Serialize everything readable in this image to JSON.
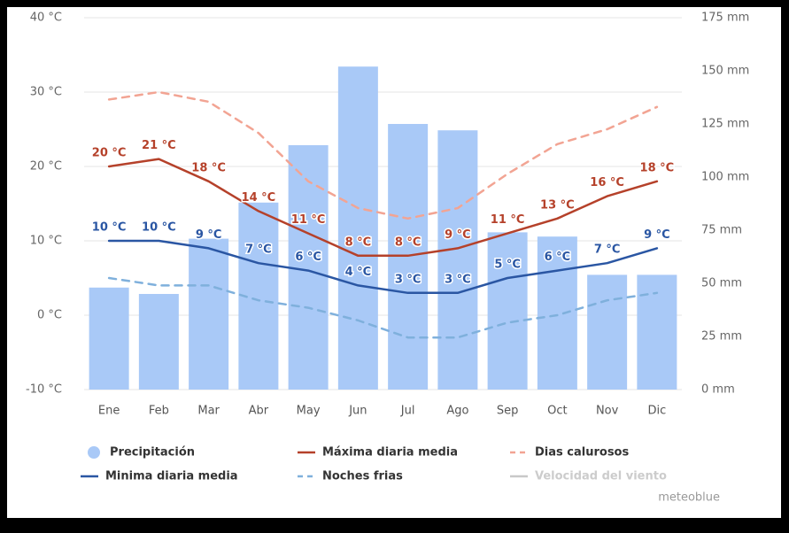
{
  "chart_data": {
    "type": "combo",
    "categories": [
      "Ene",
      "Feb",
      "Mar",
      "Abr",
      "May",
      "Jun",
      "Jul",
      "Ago",
      "Sep",
      "Oct",
      "Nov",
      "Dic"
    ],
    "ylim": [
      -10,
      40
    ],
    "yticks": [
      {
        "value": -10,
        "label": "-10 °C"
      },
      {
        "value": 0,
        "label": "0 °C"
      },
      {
        "value": 10,
        "label": "10 °C"
      },
      {
        "value": 20,
        "label": "20 °C"
      },
      {
        "value": 30,
        "label": "30 °C"
      },
      {
        "value": 40,
        "label": "40 °C"
      }
    ],
    "y2lim": [
      0,
      175
    ],
    "y2ticks": [
      {
        "value": 0,
        "label": "0 mm"
      },
      {
        "value": 25,
        "label": "25 mm"
      },
      {
        "value": 50,
        "label": "50 mm"
      },
      {
        "value": 75,
        "label": "75 mm"
      },
      {
        "value": 100,
        "label": "100 mm"
      },
      {
        "value": 125,
        "label": "125 mm"
      },
      {
        "value": 150,
        "label": "150 mm"
      },
      {
        "value": 175,
        "label": "175 mm"
      }
    ],
    "grid": true,
    "series": [
      {
        "name": "Precipitación",
        "type": "bar",
        "axis": "y2",
        "color": "#a9c9f7",
        "values": [
          48,
          45,
          71,
          88,
          115,
          152,
          125,
          122,
          74,
          72,
          54,
          54
        ]
      },
      {
        "name": "Máxima diaria media",
        "type": "line",
        "color": "#b5412a",
        "values": [
          20,
          21,
          18,
          14,
          11,
          8,
          8,
          9,
          11,
          13,
          16,
          18
        ],
        "value_labels": [
          "20 °C",
          "21 °C",
          "18 °C",
          "14 °C",
          "11 °C",
          "8 °C",
          "8 °C",
          "9 °C",
          "11 °C",
          "13 °C",
          "16 °C",
          "18 °C"
        ]
      },
      {
        "name": "Dias calurosos",
        "type": "line",
        "dashed": true,
        "color": "#f2a493",
        "values": [
          29,
          30,
          28.7,
          24.5,
          18,
          14.4,
          13,
          14.4,
          19,
          23,
          25,
          28
        ]
      },
      {
        "name": "Minima diaria media",
        "type": "line",
        "color": "#2a56a3",
        "values": [
          10,
          10,
          9,
          7,
          6,
          4,
          3,
          3,
          5,
          6,
          7,
          9
        ],
        "value_labels": [
          "10 °C",
          "10 °C",
          "9 °C",
          "7 °C",
          "6 °C",
          "4 °C",
          "3 °C",
          "3 °C",
          "5 °C",
          "6 °C",
          "7 °C",
          "9 °C"
        ]
      },
      {
        "name": "Noches frias",
        "type": "line",
        "dashed": true,
        "color": "#7fb0dc",
        "values": [
          5,
          4,
          4,
          2,
          1,
          -0.7,
          -3,
          -3,
          -1,
          0,
          2,
          3
        ]
      },
      {
        "name": "Velocidad del viento",
        "type": "line",
        "color": "#c8c8c8"
      }
    ],
    "credit": "meteoblue"
  }
}
